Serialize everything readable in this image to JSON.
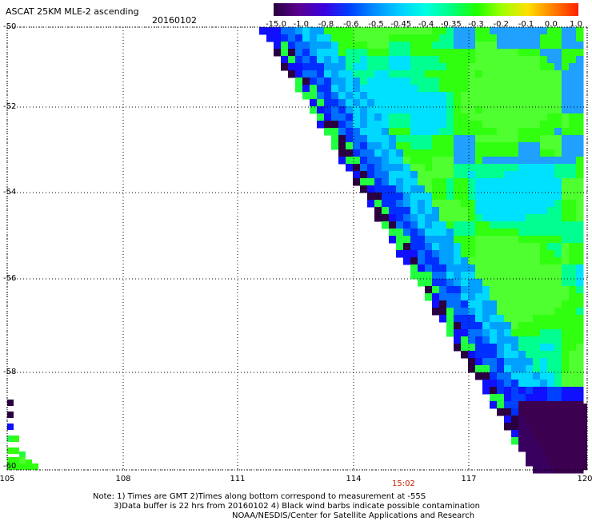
{
  "header": {
    "title": "ASCAT 25KM MLE-2 ascending",
    "date": "20160102"
  },
  "colorbar": {
    "labels": [
      "-15.0",
      "-1.0",
      "-0.8",
      "-0.6",
      "-0.5",
      "-0.45",
      "-0.4",
      "-0.35",
      "-0.3",
      "-0.2",
      "-0.1",
      "0.0",
      "1.0"
    ],
    "colors": [
      "#2a0040",
      "#5a0090",
      "#3a00e0",
      "#0040ff",
      "#0090ff",
      "#00d0ff",
      "#00ffe0",
      "#00ff80",
      "#20ff00",
      "#a0ff00",
      "#ffe000",
      "#ff8000",
      "#ff2000"
    ]
  },
  "map": {
    "lat_labels": [
      "-50",
      "-52",
      "-54",
      "-56",
      "-58",
      "-60"
    ],
    "lon_labels": [
      "105",
      "108",
      "111",
      "114",
      "117",
      "120"
    ],
    "lat_range": [
      -50,
      -60
    ],
    "lon_range": [
      105,
      120
    ],
    "time_label": "15:02"
  },
  "notes": {
    "line1": "Note: 1) Times are GMT 2)Times along bottom correspond to measurement at -55S",
    "line2": "3)Data buffer is 22 hrs from 20160102 4) Black wind barbs indicate possible contamination",
    "line3": "NOAA/NESDIS/Center for Satellite Applications and Research"
  }
}
